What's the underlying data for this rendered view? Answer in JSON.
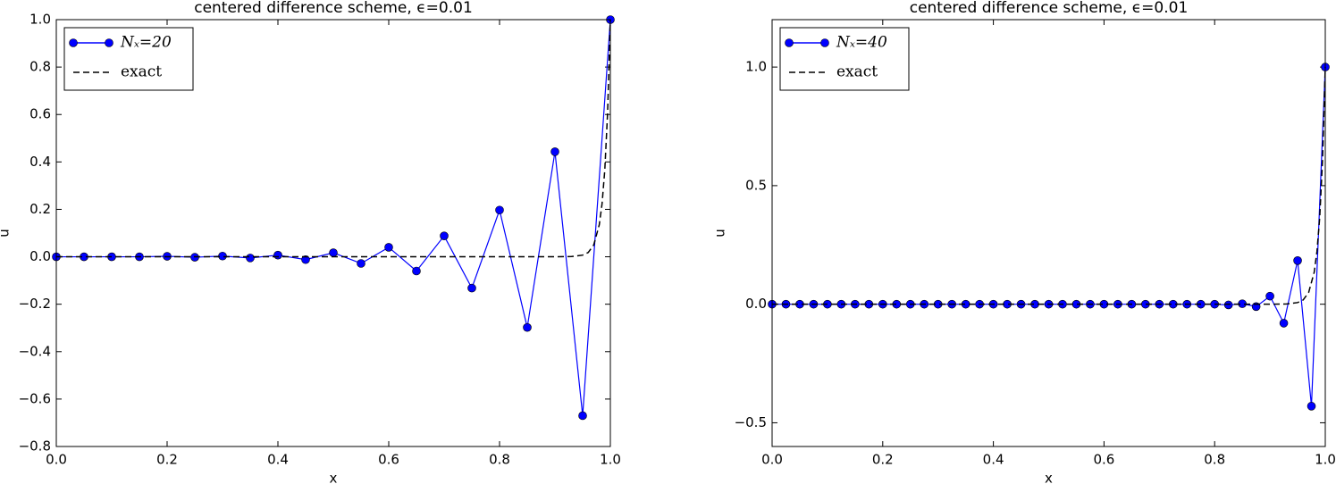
{
  "chart_data": [
    {
      "type": "line",
      "title": "centered difference scheme, ϵ=0.01",
      "x_label": "x",
      "y_label": "u",
      "xlim": [
        0,
        1
      ],
      "ylim": [
        -0.8,
        1.0
      ],
      "xticks": [
        {
          "value": 0,
          "label": "0.0"
        },
        0.2,
        0.4,
        0.6,
        0.8,
        {
          "value": 1,
          "label": "1.0"
        }
      ],
      "yticks": [
        {
          "value": -0.8,
          "label": "−0.8"
        },
        {
          "value": -0.6,
          "label": "−0.6"
        },
        {
          "value": -0.4,
          "label": "−0.4"
        },
        {
          "value": -0.2,
          "label": "−0.2"
        },
        {
          "value": 0,
          "label": "0.0"
        },
        0.2,
        0.4,
        0.6,
        0.8,
        {
          "value": 1,
          "label": "1.0"
        }
      ],
      "legend": "upper left",
      "series": [
        {
          "name": "Nₓ=20",
          "color": "#0000ff",
          "style": "marker-line",
          "x": [
            0,
            0.05,
            0.1,
            0.15,
            0.2,
            0.25,
            0.3,
            0.35,
            0.4,
            0.45,
            0.5,
            0.55,
            0.6,
            0.65,
            0.7,
            0.75,
            0.8,
            0.85,
            0.9,
            0.95,
            1
          ],
          "values": [
            0,
            0,
            0,
            0,
            0.002,
            -0.002,
            0.003,
            -0.005,
            0.007,
            -0.012,
            0.017,
            -0.028,
            0.04,
            -0.06,
            0.088,
            -0.132,
            0.197,
            -0.298,
            0.443,
            -0.67,
            1
          ]
        },
        {
          "name": "exact",
          "color": "#000000",
          "style": "dashed",
          "x": [
            0,
            0.9,
            0.93,
            0.95,
            0.96,
            0.97,
            0.98,
            0.985,
            0.99,
            0.995,
            1
          ],
          "values": [
            0,
            0,
            0.001,
            0.007,
            0.018,
            0.05,
            0.135,
            0.223,
            0.368,
            0.607,
            1
          ]
        }
      ]
    },
    {
      "type": "line",
      "title": "centered difference scheme, ϵ=0.01",
      "x_label": "x",
      "y_label": "u",
      "xlim": [
        0,
        1
      ],
      "ylim": [
        -0.6,
        1.2
      ],
      "xticks": [
        {
          "value": 0,
          "label": "0.0"
        },
        0.2,
        0.4,
        0.6,
        0.8,
        {
          "value": 1,
          "label": "1.0"
        }
      ],
      "yticks": [
        {
          "value": -0.5,
          "label": "−0.5"
        },
        {
          "value": 0,
          "label": "0.0"
        },
        0.5,
        {
          "value": 1,
          "label": "1.0"
        }
      ],
      "legend": "upper left",
      "series": [
        {
          "name": "Nₓ=40",
          "color": "#0000ff",
          "style": "marker-line",
          "x": [
            0,
            0.025,
            0.05,
            0.075,
            0.1,
            0.125,
            0.15,
            0.175,
            0.2,
            0.225,
            0.25,
            0.275,
            0.3,
            0.325,
            0.35,
            0.375,
            0.4,
            0.425,
            0.45,
            0.475,
            0.5,
            0.525,
            0.55,
            0.575,
            0.6,
            0.625,
            0.65,
            0.675,
            0.7,
            0.725,
            0.75,
            0.775,
            0.8,
            0.825,
            0.85,
            0.875,
            0.9,
            0.925,
            0.95,
            0.975,
            1
          ],
          "values": [
            0,
            0,
            0,
            0,
            0,
            0,
            0,
            0,
            0,
            0,
            0,
            0,
            0,
            0,
            0,
            0,
            0,
            0,
            0,
            0,
            0,
            0,
            0,
            0,
            0,
            0,
            0,
            0,
            0,
            0,
            0,
            0,
            0,
            -0.003,
            0.002,
            -0.01,
            0.034,
            -0.08,
            0.184,
            -0.43,
            1
          ]
        },
        {
          "name": "exact",
          "color": "#000000",
          "style": "dashed",
          "x": [
            0,
            0.9,
            0.93,
            0.95,
            0.96,
            0.97,
            0.98,
            0.985,
            0.99,
            0.995,
            1
          ],
          "values": [
            0,
            0,
            0.001,
            0.007,
            0.018,
            0.05,
            0.135,
            0.223,
            0.368,
            0.607,
            1
          ]
        }
      ]
    }
  ]
}
